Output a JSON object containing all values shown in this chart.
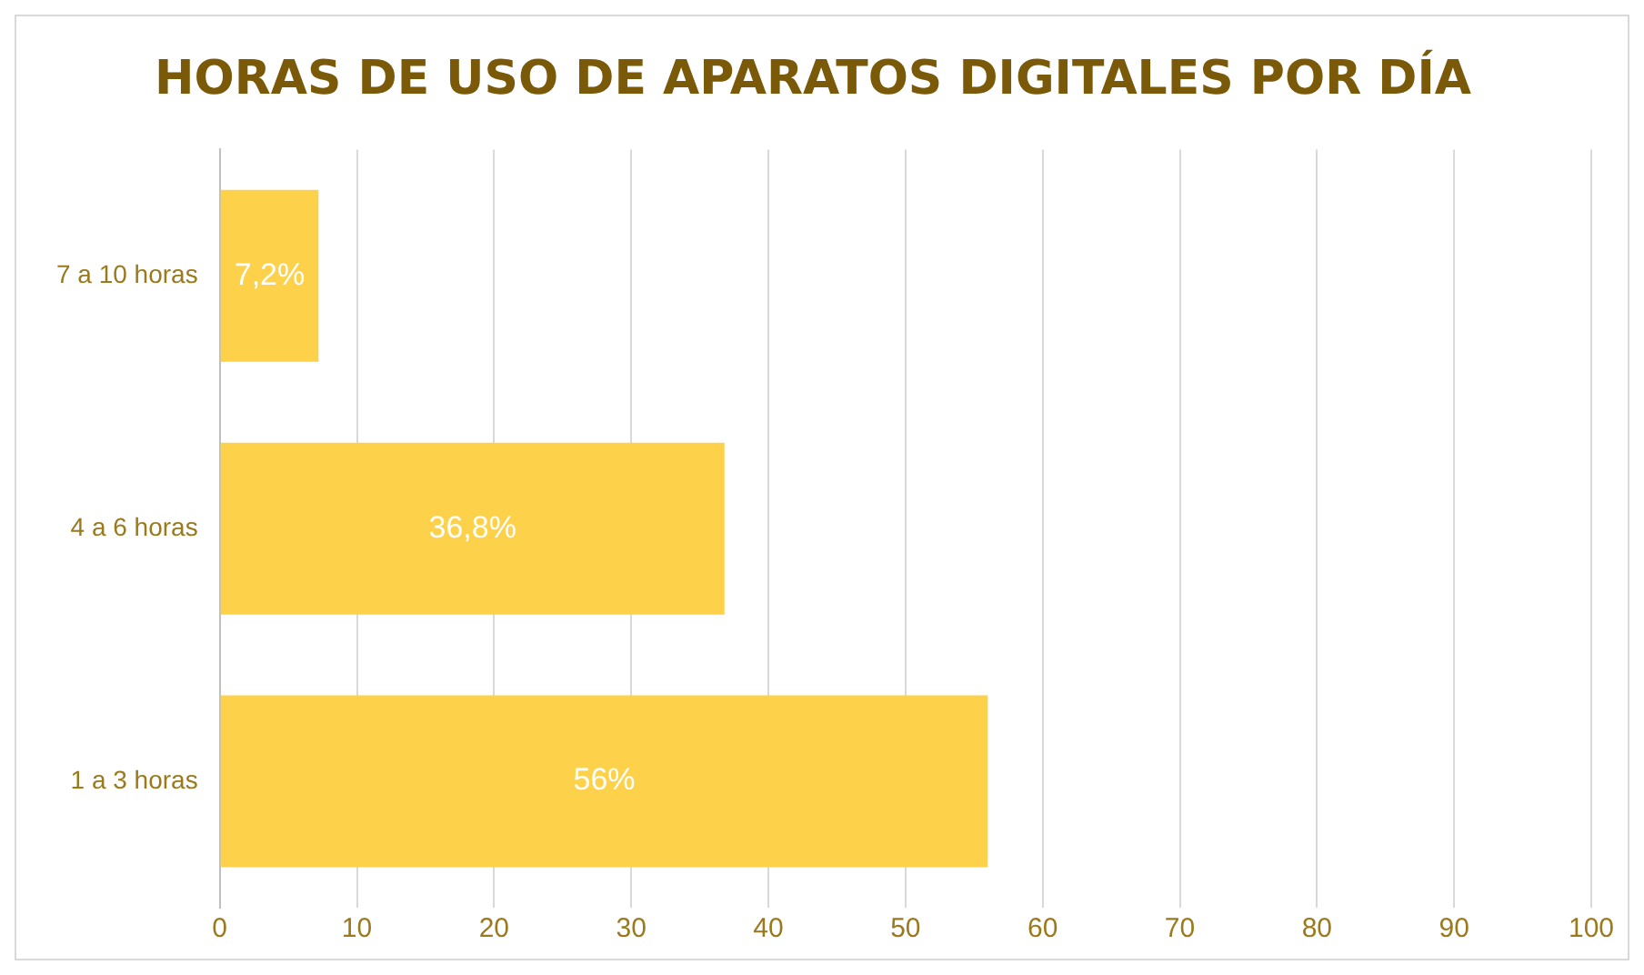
{
  "chart_data": {
    "type": "bar",
    "orientation": "horizontal",
    "title": "HORAS DE USO DE APARATOS DIGITALES POR DÍA",
    "categories": [
      "7 a 10 horas",
      "4 a 6 horas",
      "1 a 3 horas"
    ],
    "values": [
      7.2,
      36.8,
      56
    ],
    "value_labels": [
      "7,2%",
      "36,8%",
      "56%"
    ],
    "color": "#fdd14a",
    "xlim": [
      0,
      100
    ],
    "xticks": [
      0,
      10,
      20,
      30,
      40,
      50,
      60,
      70,
      80,
      90,
      100
    ],
    "grid": "x",
    "legend": false
  }
}
